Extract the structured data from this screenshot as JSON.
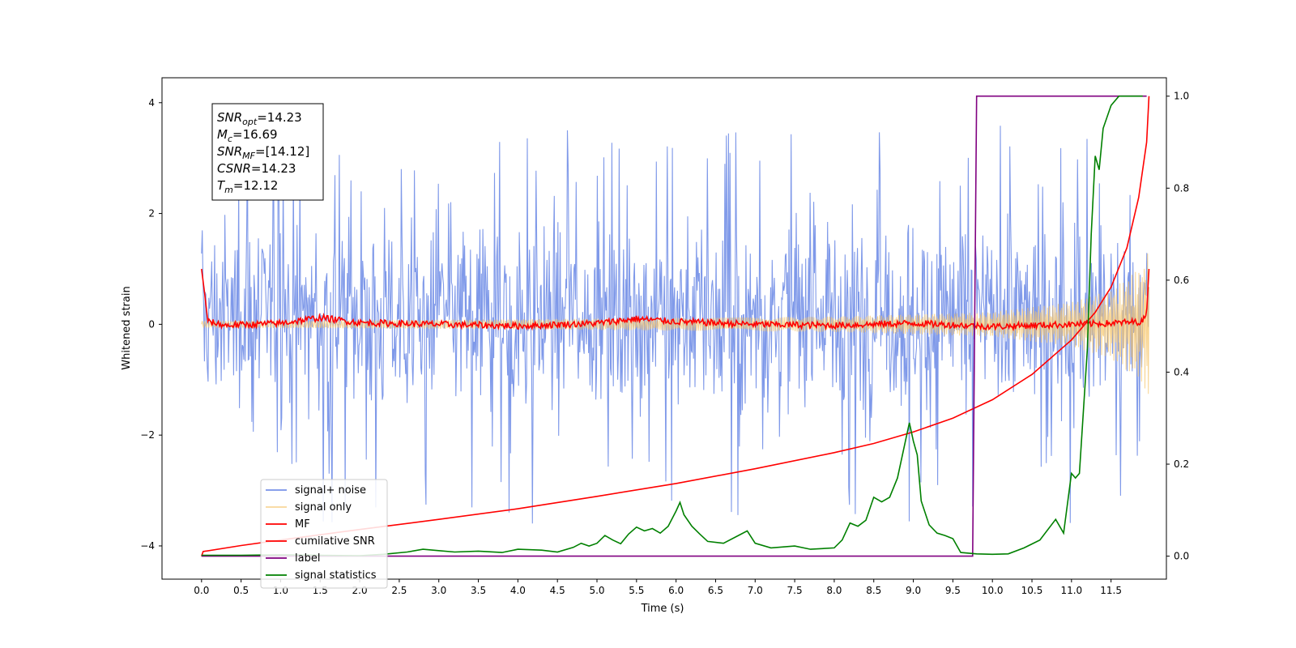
{
  "chart_data": {
    "type": "line",
    "xlabel": "Time (s)",
    "ylabel": "Whitened strain",
    "xlim": [
      -0.5,
      12.2
    ],
    "ylim": [
      -4.6,
      4.45
    ],
    "ylim_right": [
      -0.05,
      1.04
    ],
    "x_ticks": [
      0.0,
      0.5,
      1.0,
      1.5,
      2.0,
      2.5,
      3.0,
      3.5,
      4.0,
      4.5,
      5.0,
      5.5,
      6.0,
      6.5,
      7.0,
      7.5,
      8.0,
      8.5,
      9.0,
      9.5,
      10.0,
      10.5,
      11.0,
      11.5
    ],
    "x_tick_labels": [
      "0.0",
      "0.5",
      "1.0",
      "1.5",
      "2.0",
      "2.5",
      "3.0",
      "3.5",
      "4.0",
      "4.5",
      "5.0",
      "5.5",
      "6.0",
      "6.5",
      "7.0",
      "7.5",
      "8.0",
      "8.5",
      "9.0",
      "9.5",
      "10.0",
      "10.5",
      "11.0",
      "11.5"
    ],
    "y_ticks": [
      -4,
      -2,
      0,
      2,
      4
    ],
    "y_tick_labels": [
      "−4",
      "−2",
      "0",
      "2",
      "4"
    ],
    "y_ticks_right": [
      0.0,
      0.2,
      0.4,
      0.6,
      0.8,
      1.0
    ],
    "y_tick_labels_right": [
      "0.0",
      "0.2",
      "0.4",
      "0.6",
      "0.8",
      "1.0"
    ],
    "grid": false,
    "legend_position": "lower-left",
    "annotation": {
      "lines": [
        {
          "main": "SNR",
          "sub": "opt",
          "rest": "=14.23"
        },
        {
          "main": "M",
          "sub": "c",
          "rest": "=16.69"
        },
        {
          "main": "SNR",
          "sub": "MF",
          "rest": "=[14.12]"
        },
        {
          "main": "CSNR",
          "sub": "",
          "rest": "=14.23"
        },
        {
          "main": "T",
          "sub": "m",
          "rest": "=12.12"
        }
      ]
    },
    "series": [
      {
        "name": "signal+ noise",
        "axis": "left",
        "color": "#7893e8",
        "style": "dense-noise",
        "t_end": 11.98,
        "noise_sigma": 1.0,
        "upper_envelope_typical": 2.6,
        "lower_envelope_typical": -2.2,
        "max_value": 4.05,
        "min_value": -4.05
      },
      {
        "name": "signal only",
        "axis": "left",
        "color": "#f5c66b",
        "style": "chirp",
        "t_end": 11.98,
        "amplitude": [
          [
            0.0,
            0.06
          ],
          [
            4.0,
            0.09
          ],
          [
            8.0,
            0.14
          ],
          [
            10.0,
            0.22
          ],
          [
            11.0,
            0.4
          ],
          [
            11.5,
            0.62
          ],
          [
            11.9,
            1.05
          ],
          [
            11.98,
            1.4
          ]
        ]
      },
      {
        "name": "MF",
        "axis": "left",
        "color": "#ff0000",
        "style": "noisy-flat",
        "points": [
          [
            0.0,
            1.0
          ],
          [
            0.04,
            0.55
          ],
          [
            0.08,
            0.05
          ],
          [
            0.3,
            -0.02
          ],
          [
            1.0,
            0.02
          ],
          [
            1.5,
            0.12
          ],
          [
            2.0,
            0.03
          ],
          [
            3.0,
            0.0
          ],
          [
            4.0,
            -0.03
          ],
          [
            5.0,
            0.02
          ],
          [
            5.5,
            0.1
          ],
          [
            6.0,
            0.05
          ],
          [
            7.0,
            0.0
          ],
          [
            8.0,
            -0.02
          ],
          [
            9.0,
            0.02
          ],
          [
            10.0,
            -0.04
          ],
          [
            11.0,
            0.0
          ],
          [
            11.5,
            0.02
          ],
          [
            11.9,
            0.05
          ],
          [
            11.95,
            0.2
          ],
          [
            11.98,
            1.0
          ]
        ]
      },
      {
        "name": "cumilative SNR",
        "axis": "right",
        "color": "#ff0000",
        "style": "line",
        "points": [
          [
            0.0,
            0.0
          ],
          [
            0.02,
            0.01
          ],
          [
            0.5,
            0.023
          ],
          [
            1.0,
            0.035
          ],
          [
            2.0,
            0.058
          ],
          [
            3.0,
            0.08
          ],
          [
            4.0,
            0.103
          ],
          [
            5.0,
            0.13
          ],
          [
            6.0,
            0.158
          ],
          [
            7.0,
            0.19
          ],
          [
            8.0,
            0.225
          ],
          [
            8.5,
            0.245
          ],
          [
            9.0,
            0.27
          ],
          [
            9.5,
            0.3
          ],
          [
            10.0,
            0.34
          ],
          [
            10.5,
            0.395
          ],
          [
            11.0,
            0.47
          ],
          [
            11.3,
            0.53
          ],
          [
            11.5,
            0.585
          ],
          [
            11.7,
            0.67
          ],
          [
            11.85,
            0.78
          ],
          [
            11.95,
            0.9
          ],
          [
            11.98,
            1.0
          ]
        ]
      },
      {
        "name": "label",
        "axis": "right",
        "color": "#800080",
        "style": "line",
        "points": [
          [
            0.0,
            0.0
          ],
          [
            9.75,
            0.0
          ],
          [
            9.8,
            1.0
          ],
          [
            11.95,
            1.0
          ]
        ]
      },
      {
        "name": "signal statistics",
        "axis": "right",
        "color": "#008000",
        "style": "line",
        "points": [
          [
            0.0,
            0.002
          ],
          [
            0.5,
            0.002
          ],
          [
            1.0,
            0.003
          ],
          [
            1.5,
            0.002
          ],
          [
            2.0,
            0.001
          ],
          [
            2.3,
            0.004
          ],
          [
            2.6,
            0.009
          ],
          [
            2.8,
            0.015
          ],
          [
            3.0,
            0.012
          ],
          [
            3.2,
            0.009
          ],
          [
            3.5,
            0.011
          ],
          [
            3.8,
            0.008
          ],
          [
            4.0,
            0.015
          ],
          [
            4.3,
            0.013
          ],
          [
            4.5,
            0.009
          ],
          [
            4.7,
            0.019
          ],
          [
            4.8,
            0.028
          ],
          [
            4.9,
            0.022
          ],
          [
            5.0,
            0.028
          ],
          [
            5.1,
            0.045
          ],
          [
            5.2,
            0.035
          ],
          [
            5.3,
            0.027
          ],
          [
            5.4,
            0.048
          ],
          [
            5.5,
            0.063
          ],
          [
            5.6,
            0.055
          ],
          [
            5.7,
            0.06
          ],
          [
            5.8,
            0.05
          ],
          [
            5.9,
            0.065
          ],
          [
            6.0,
            0.098
          ],
          [
            6.05,
            0.117
          ],
          [
            6.1,
            0.09
          ],
          [
            6.2,
            0.065
          ],
          [
            6.3,
            0.048
          ],
          [
            6.4,
            0.032
          ],
          [
            6.6,
            0.028
          ],
          [
            6.8,
            0.046
          ],
          [
            6.9,
            0.055
          ],
          [
            7.0,
            0.028
          ],
          [
            7.2,
            0.018
          ],
          [
            7.5,
            0.022
          ],
          [
            7.7,
            0.015
          ],
          [
            8.0,
            0.018
          ],
          [
            8.1,
            0.035
          ],
          [
            8.2,
            0.072
          ],
          [
            8.3,
            0.065
          ],
          [
            8.4,
            0.078
          ],
          [
            8.5,
            0.128
          ],
          [
            8.6,
            0.118
          ],
          [
            8.7,
            0.128
          ],
          [
            8.8,
            0.17
          ],
          [
            8.9,
            0.25
          ],
          [
            8.95,
            0.29
          ],
          [
            9.0,
            0.25
          ],
          [
            9.05,
            0.22
          ],
          [
            9.1,
            0.12
          ],
          [
            9.2,
            0.068
          ],
          [
            9.3,
            0.05
          ],
          [
            9.4,
            0.045
          ],
          [
            9.5,
            0.038
          ],
          [
            9.6,
            0.008
          ],
          [
            9.8,
            0.005
          ],
          [
            10.0,
            0.004
          ],
          [
            10.2,
            0.005
          ],
          [
            10.4,
            0.018
          ],
          [
            10.6,
            0.035
          ],
          [
            10.8,
            0.08
          ],
          [
            10.9,
            0.05
          ],
          [
            11.0,
            0.18
          ],
          [
            11.05,
            0.17
          ],
          [
            11.1,
            0.18
          ],
          [
            11.2,
            0.45
          ],
          [
            11.25,
            0.7
          ],
          [
            11.3,
            0.87
          ],
          [
            11.35,
            0.84
          ],
          [
            11.4,
            0.93
          ],
          [
            11.5,
            0.98
          ],
          [
            11.6,
            1.0
          ],
          [
            11.9,
            1.0
          ]
        ]
      }
    ]
  }
}
